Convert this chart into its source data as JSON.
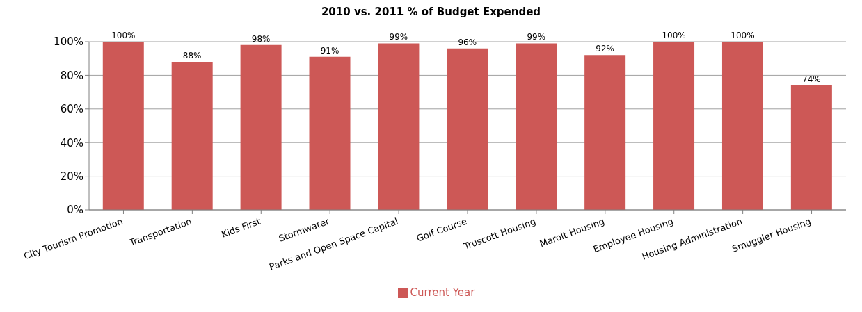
{
  "chart_data": {
    "type": "bar",
    "title": "2010 vs. 2011 % of Budget Expended",
    "categories": [
      "City Tourism Promotion",
      "Transportation",
      "Kids First",
      "Stormwater",
      "Parks and Open Space Capital",
      "Golf Course",
      "Truscott Housing",
      "Marolt Housing",
      "Employee Housing",
      "Housing Administration",
      "Smuggler Housing"
    ],
    "series": [
      {
        "name": "Current Year",
        "color": "#cd5856",
        "values": [
          100,
          88,
          98,
          91,
          99,
          96,
          99,
          92,
          100,
          100,
          74
        ],
        "value_labels": [
          "100%",
          "88%",
          "98%",
          "91%",
          "99%",
          "96%",
          "99%",
          "92%",
          "100%",
          "100%",
          "74%"
        ]
      }
    ],
    "ylim": [
      0,
      100
    ],
    "yticks": [
      {
        "value": 0,
        "label": "0%"
      },
      {
        "value": 20,
        "label": "20%"
      },
      {
        "value": 40,
        "label": "40%"
      },
      {
        "value": 60,
        "label": "60%"
      },
      {
        "value": 80,
        "label": "80%"
      },
      {
        "value": 100,
        "label": "100%"
      }
    ],
    "grid": "y",
    "legend": "bottom"
  }
}
